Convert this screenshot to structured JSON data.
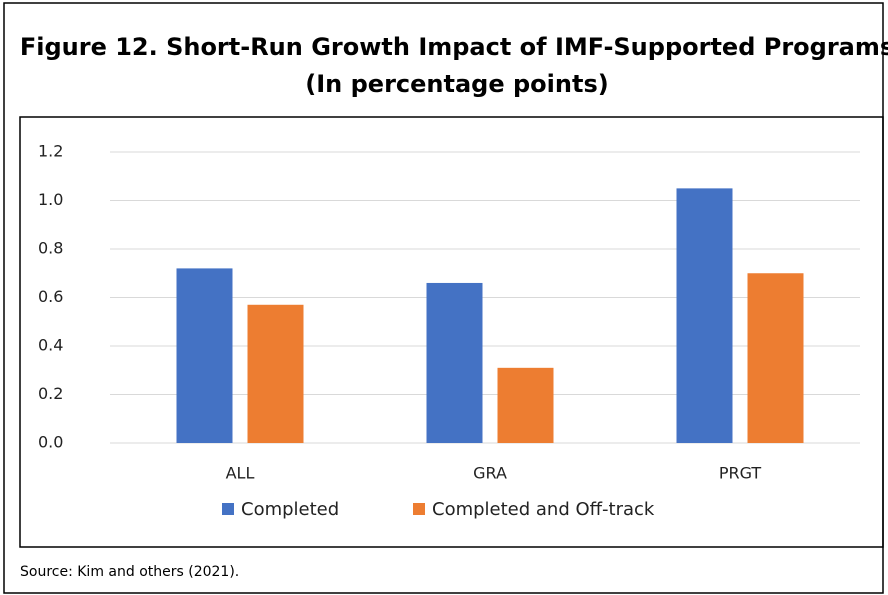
{
  "chart_data": {
    "type": "bar",
    "title": "Figure 12. Short-Run Growth Impact of IMF-Supported Programs",
    "subtitle": "(In percentage points)",
    "source": "Source: Kim and others (2021).",
    "categories": [
      "ALL",
      "GRA",
      "PRGT"
    ],
    "series": [
      {
        "name": "Completed",
        "color": "#4472c4",
        "values": [
          0.72,
          0.66,
          1.05
        ]
      },
      {
        "name": "Completed and Off-track",
        "color": "#ed7d31",
        "values": [
          0.57,
          0.31,
          0.7
        ]
      }
    ],
    "ylim": [
      0,
      1.2
    ],
    "yticks": [
      {
        "value": 0,
        "label": "0.0"
      },
      0.2,
      0.4,
      0.6,
      0.8,
      {
        "value": 1,
        "label": "1.0"
      },
      1.2
    ],
    "grid": true,
    "legend": "bottom"
  }
}
